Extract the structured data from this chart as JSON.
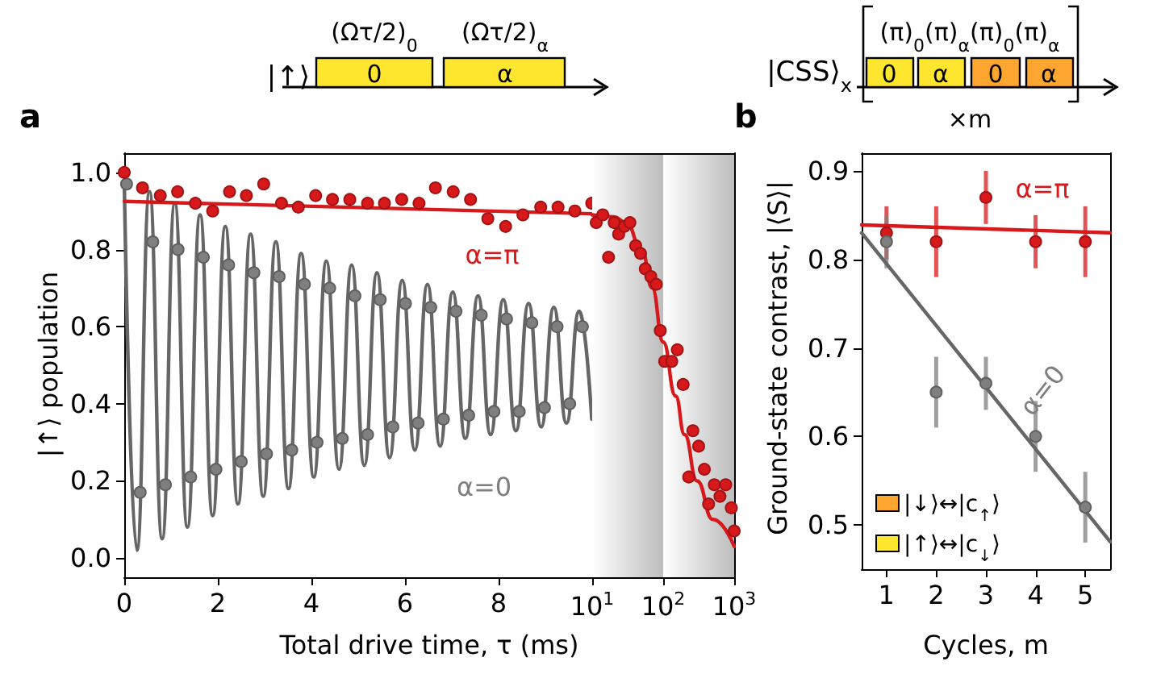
{
  "chart_data": [
    {
      "type": "scatter",
      "title": "a",
      "xlabel": "Total drive time, τ (ms)",
      "ylabel": "|↑⟩ population",
      "annotations": [
        "|↑⟩",
        "(Ωτ/2)$_{0}$",
        "(Ωτ/2)$_{α}$",
        "0",
        "α"
      ],
      "xlim": [
        0,
        10
      ],
      "xticks": [
        0,
        2,
        4,
        6,
        8
      ],
      "ylim": [
        -0.05,
        1.05
      ],
      "yticks": [
        {
          "value": 0,
          "label": "0.0"
        },
        {
          "value": 0.2,
          "label": "0.2"
        },
        {
          "value": 0.4,
          "label": "0.4"
        },
        {
          "value": 0.6,
          "label": "0.6"
        },
        {
          "value": 0.8,
          "label": "0.8"
        },
        {
          "value": 1,
          "label": "1.0"
        }
      ],
      "grid": false,
      "marker": "circle",
      "series": [
        {
          "type": "line",
          "marker": "none",
          "color": "#666666",
          "x": [
            0,
            0.27,
            0.54,
            0.81,
            1.08,
            1.35,
            1.62,
            1.89,
            2.16,
            2.43,
            2.7,
            2.97,
            3.24,
            3.51,
            3.78,
            4.05,
            4.32,
            4.59,
            4.86,
            5.13,
            5.4,
            5.67,
            5.94,
            6.21,
            6.48,
            6.75,
            7.02,
            7.29,
            7.56,
            7.83,
            8.1,
            8.37,
            8.64,
            8.91,
            9.18,
            9.45,
            9.72,
            9.99
          ],
          "values": [
            0.98,
            0.02,
            0.95,
            0.05,
            0.92,
            0.08,
            0.89,
            0.11,
            0.86,
            0.14,
            0.84,
            0.16,
            0.82,
            0.18,
            0.79,
            0.21,
            0.77,
            0.23,
            0.76,
            0.24,
            0.74,
            0.26,
            0.72,
            0.28,
            0.71,
            0.29,
            0.69,
            0.31,
            0.68,
            0.32,
            0.67,
            0.33,
            0.66,
            0.34,
            0.65,
            0.35,
            0.64,
            0.36
          ]
        },
        {
          "name": "α=0",
          "color": "#7f7f7f",
          "x": [
            0.05,
            0.34,
            0.61,
            0.88,
            1.15,
            1.42,
            1.69,
            1.96,
            2.23,
            2.5,
            2.77,
            3.04,
            3.31,
            3.58,
            3.85,
            4.12,
            4.39,
            4.66,
            4.93,
            5.2,
            5.47,
            5.74,
            6.01,
            6.28,
            6.55,
            6.82,
            7.09,
            7.36,
            7.63,
            7.9,
            8.17,
            8.44,
            8.71,
            8.98,
            9.25,
            9.52,
            9.79
          ],
          "values": [
            0.97,
            0.17,
            0.82,
            0.19,
            0.8,
            0.21,
            0.78,
            0.23,
            0.76,
            0.25,
            0.74,
            0.27,
            0.73,
            0.28,
            0.71,
            0.3,
            0.7,
            0.31,
            0.68,
            0.32,
            0.67,
            0.34,
            0.66,
            0.35,
            0.65,
            0.36,
            0.64,
            0.37,
            0.63,
            0.38,
            0.62,
            0.38,
            0.61,
            0.39,
            0.6,
            0.4,
            0.6
          ]
        },
        {
          "type": "line",
          "marker": "none",
          "color": "#d7191c",
          "x": [
            0,
            10
          ],
          "values": [
            0.925,
            0.893
          ]
        },
        {
          "name": "α=π",
          "color": "#d7191c",
          "x": [
            0,
            0.39,
            0.77,
            1.14,
            1.52,
            1.89,
            2.25,
            2.61,
            2.98,
            3.36,
            3.72,
            4.09,
            4.45,
            4.82,
            5.2,
            5.56,
            5.93,
            6.3,
            6.65,
            7.03,
            7.4,
            7.77,
            8.15,
            8.52,
            8.9,
            9.27,
            9.63,
            9.99
          ],
          "values": [
            1.0,
            0.96,
            0.94,
            0.95,
            0.92,
            0.9,
            0.95,
            0.94,
            0.97,
            0.92,
            0.91,
            0.94,
            0.93,
            0.93,
            0.92,
            0.92,
            0.93,
            0.92,
            0.96,
            0.95,
            0.93,
            0.88,
            0.86,
            0.89,
            0.91,
            0.91,
            0.9,
            0.92
          ]
        }
      ]
    },
    {
      "type": "scatter",
      "log": "x",
      "tick_labels": "x",
      "xlim": [
        10,
        1000
      ],
      "xticks": [
        {
          "value": 10,
          "label": "10$^{1}$"
        },
        {
          "value": 100,
          "label": "10$^{2}$"
        },
        {
          "value": 1000,
          "label": "10$^{3}$"
        }
      ],
      "ylim": [
        -0.05,
        1.05
      ],
      "grid": false,
      "marker": "circle",
      "bands": [
        {
          "axis": "x",
          "from": 10,
          "to": 100,
          "color": "#bdbdbd"
        },
        {
          "axis": "x",
          "from": 100,
          "to": 1000,
          "color": "#bdbdbd"
        }
      ],
      "series": [
        {
          "type": "line",
          "marker": "none",
          "color": "#d7191c",
          "x": [
            10,
            20,
            30,
            50,
            70,
            100,
            150,
            200,
            300,
            500,
            1000
          ],
          "values": [
            0.89,
            0.885,
            0.87,
            0.8,
            0.7,
            0.56,
            0.42,
            0.32,
            0.2,
            0.1,
            0.03
          ]
        },
        {
          "color": "#d7191c",
          "x": [
            11.4,
            14.1,
            17,
            20.4,
            23.6,
            28.3,
            34,
            41,
            48,
            56,
            67,
            80,
            91,
            105,
            132,
            158,
            191,
            229,
            262,
            316,
            380,
            436,
            525,
            631,
            759,
            912,
            1000
          ],
          "values": [
            0.87,
            0.89,
            0.78,
            0.87,
            0.84,
            0.86,
            0.87,
            0.81,
            0.79,
            0.75,
            0.73,
            0.71,
            0.59,
            0.51,
            0.51,
            0.54,
            0.45,
            0.21,
            0.33,
            0.29,
            0.23,
            0.14,
            0.19,
            0.16,
            0.19,
            0.13,
            0.07
          ]
        }
      ]
    },
    {
      "type": "scatter",
      "title": "b",
      "xlabel": "Cycles, m",
      "ylabel": "Ground-state contrast, |⟨S⟩|",
      "annotations": [
        "|CSS⟩$_{x}$",
        "(π)$_{0}$(π)$_{α}$(π)$_{0}$(π)$_{α}$",
        "0",
        "α",
        "0",
        "α",
        "×m",
        "|↓⟩↔|c$_{↑}$⟩",
        "|↑⟩↔|c$_{↓}$⟩"
      ],
      "xlim": [
        0.5,
        5.5
      ],
      "xticks": [
        1,
        2,
        3,
        4,
        5
      ],
      "ylim": [
        0.45,
        0.92
      ],
      "yticks": [
        0.5,
        0.6,
        0.7,
        0.8,
        0.9
      ],
      "grid": false,
      "marker": "circle",
      "series": [
        {
          "type": "line",
          "marker": "none",
          "color": "#d7191c",
          "x": [
            0.5,
            5.5
          ],
          "values": [
            0.839,
            0.83
          ]
        },
        {
          "type": "line",
          "marker": "none",
          "color": "#666666",
          "x": [
            0.5,
            5.5
          ],
          "values": [
            0.83,
            0.481
          ]
        },
        {
          "name": "α=π",
          "color": "#d7191c",
          "x": [
            1,
            2,
            3,
            4,
            5
          ],
          "values": [
            0.83,
            0.82,
            0.87,
            0.82,
            0.82
          ],
          "errors": [
            0.03,
            0.04,
            0.03,
            0.03,
            0.04
          ]
        },
        {
          "name": "α=0",
          "color": "#7f7f7f",
          "x": [
            1,
            2,
            3,
            4,
            5
          ],
          "values": [
            0.82,
            0.65,
            0.66,
            0.6,
            0.52
          ],
          "errors": [
            0.03,
            0.04,
            0.03,
            0.04,
            0.04
          ]
        }
      ]
    }
  ]
}
